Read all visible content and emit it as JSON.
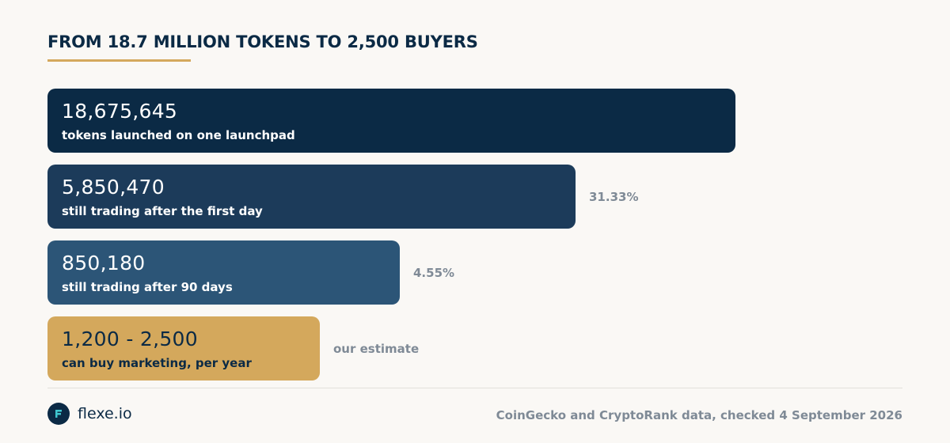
{
  "header": {
    "title": "FROM 18.7 MILLION TOKENS TO 2,500 BUYERS"
  },
  "colors": {
    "accent": "#d4a85c",
    "navy_dark": "#0b2a45",
    "navy_mid": "#1c3b5a",
    "navy_light": "#2c5577",
    "muted_text": "#7f8a96",
    "background": "#faf8f5"
  },
  "chart_data": {
    "type": "bar",
    "orientation": "horizontal",
    "title": "FROM 18.7 MILLION TOKENS TO 2,500 BUYERS",
    "categories": [
      "tokens launched on one launchpad",
      "still trading after the first day",
      "still trading after 90 days",
      "can buy marketing, per year"
    ],
    "value_labels": [
      "18,675,645",
      "5,850,470",
      "850,180",
      "1,200 - 2,500"
    ],
    "values": [
      18675645,
      5850470,
      850180,
      2500
    ],
    "value_range_last": [
      1200,
      2500
    ],
    "annotations": [
      "",
      "31.33%",
      "4.55%",
      "our estimate"
    ],
    "bar_colors": [
      "#0b2a45",
      "#1c3b5a",
      "#2c5577",
      "#d4a85c"
    ],
    "label_colors": [
      "#ffffff",
      "#ffffff",
      "#ffffff",
      "#0b2a45"
    ],
    "scale": "non-linear (visual widths not proportional to values)",
    "grid": false,
    "legend": "none"
  },
  "footer": {
    "brand_name": "flexe.io",
    "logo_icon": "flexe-logo-icon",
    "source": "CoinGecko and CryptoRank data, checked 4 September 2026"
  }
}
